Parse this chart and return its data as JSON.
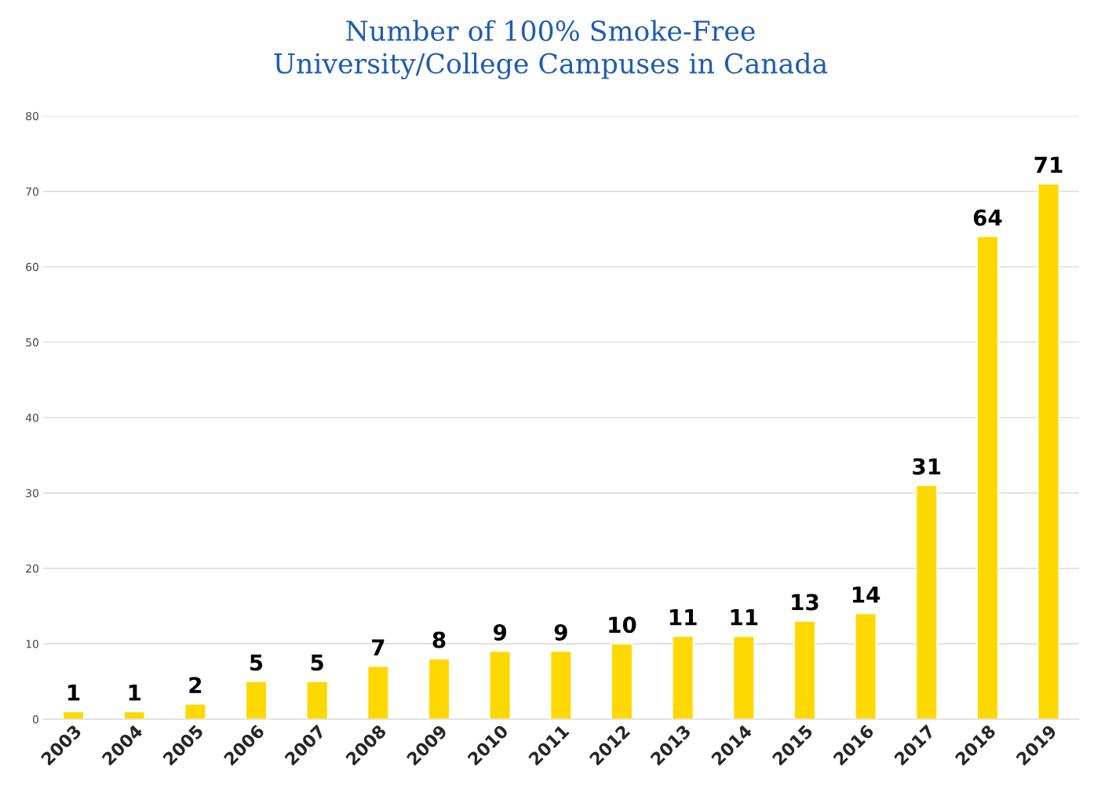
{
  "chart_data": {
    "type": "bar",
    "title": "Number of 100% Smoke-Free\nUniversity/College Campuses in Canada",
    "categories": [
      "2003",
      "2004",
      "2005",
      "2006",
      "2007",
      "2008",
      "2009",
      "2010",
      "2011",
      "2012",
      "2013",
      "2014",
      "2015",
      "2016",
      "2017",
      "2018",
      "2019"
    ],
    "values": [
      1,
      1,
      2,
      5,
      5,
      7,
      8,
      9,
      9,
      10,
      11,
      11,
      13,
      14,
      31,
      64,
      71
    ],
    "color": "#ffd800",
    "ylim": [
      0,
      80
    ],
    "yticks": [
      0,
      10,
      20,
      30,
      40,
      50,
      60,
      70,
      80
    ],
    "grid": "y",
    "data_labels": true,
    "legend": false
  }
}
